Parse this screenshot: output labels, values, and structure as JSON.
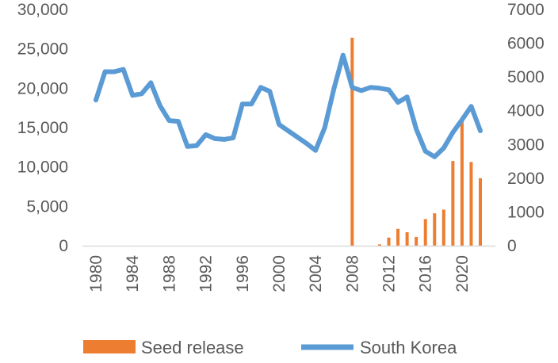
{
  "chart_data": {
    "type": "bar+line",
    "title": "",
    "xlabel": "",
    "ylabel": "",
    "x_tick_labels": [
      "1980",
      "1984",
      "1988",
      "1992",
      "1996",
      "2000",
      "2004",
      "2008",
      "2012",
      "2016",
      "2020"
    ],
    "y_left": {
      "range": [
        0,
        30000
      ],
      "ticks": [
        0,
        5000,
        10000,
        15000,
        20000,
        25000,
        30000
      ],
      "tick_labels": [
        "0",
        "5,000",
        "10,000",
        "15,000",
        "20,000",
        "25,000",
        "30,000"
      ]
    },
    "y_right": {
      "range": [
        0,
        7000
      ],
      "ticks": [
        0,
        1000,
        2000,
        3000,
        4000,
        5000,
        6000,
        7000
      ],
      "tick_labels": [
        "0",
        "1000",
        "2000",
        "3000",
        "4000",
        "5000",
        "6000",
        "7000"
      ]
    },
    "colors": {
      "bar": "#ED7D31",
      "line": "#5B9BD5"
    },
    "series": [
      {
        "name": "South Korea",
        "kind": "line",
        "axis": "left",
        "x": [
          1980,
          1981,
          1982,
          1983,
          1984,
          1985,
          1986,
          1987,
          1988,
          1989,
          1990,
          1991,
          1992,
          1993,
          1994,
          1995,
          1996,
          1997,
          1998,
          1999,
          2000,
          2001,
          2002,
          2003,
          2004,
          2005,
          2006,
          2007,
          2008,
          2009,
          2010,
          2011,
          2012,
          2013,
          2014,
          2015,
          2016,
          2017,
          2018,
          2019,
          2020,
          2021,
          2022
        ],
        "values": [
          18500,
          22100,
          22100,
          22400,
          19100,
          19300,
          20700,
          17800,
          15900,
          15800,
          12600,
          12700,
          14100,
          13600,
          13500,
          13700,
          18000,
          18000,
          20100,
          19600,
          15400,
          14600,
          13800,
          13000,
          12100,
          15000,
          19900,
          24200,
          20100,
          19700,
          20100,
          20000,
          19800,
          18200,
          18900,
          14800,
          12000,
          11300,
          12400,
          14400,
          16000,
          17700,
          14600
        ]
      },
      {
        "name": "Seed release",
        "kind": "bar",
        "axis": "right",
        "x": [
          2008,
          2011,
          2012,
          2013,
          2014,
          2015,
          2016,
          2017,
          2018,
          2019,
          2020,
          2021,
          2022
        ],
        "values": [
          6160,
          40,
          240,
          500,
          400,
          260,
          790,
          960,
          1070,
          2510,
          3760,
          2480,
          2000
        ]
      }
    ],
    "legend": {
      "position": "bottom",
      "items": [
        {
          "label": "Seed release",
          "symbol": "bar"
        },
        {
          "label": "South Korea",
          "symbol": "line"
        }
      ]
    }
  }
}
